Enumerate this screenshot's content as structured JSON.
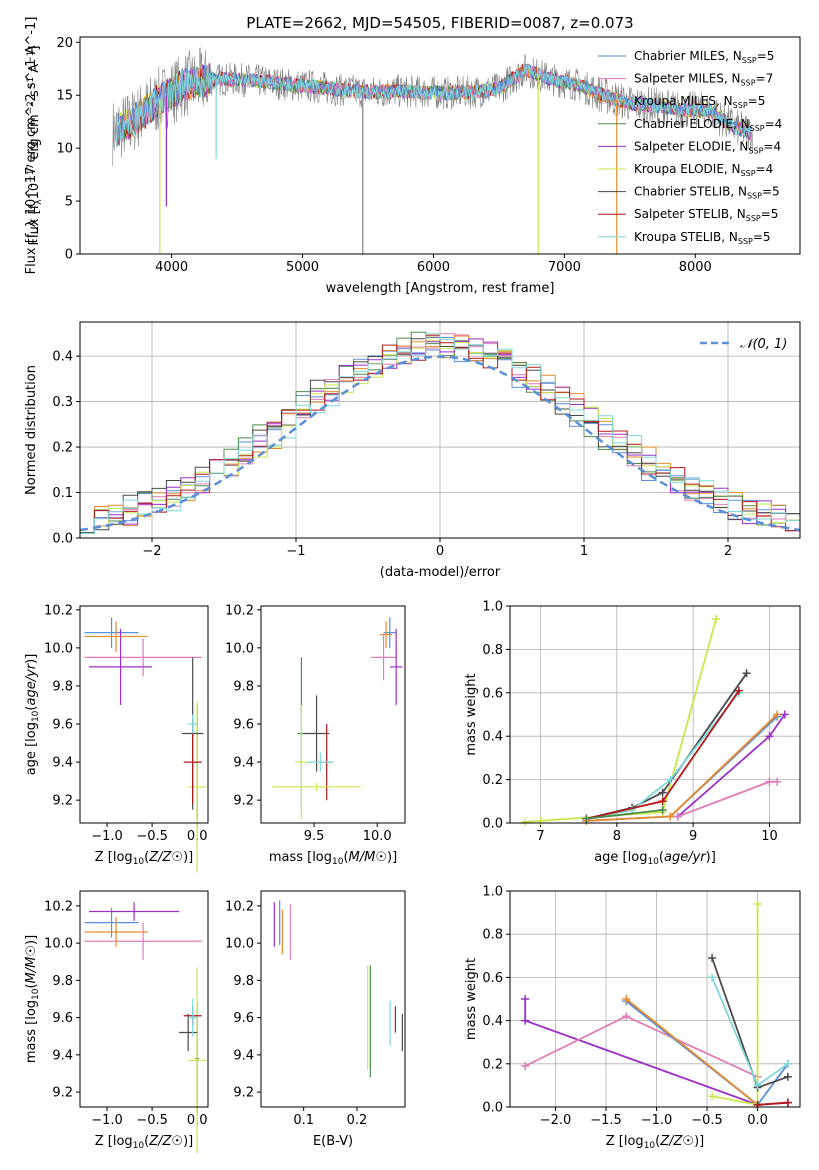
{
  "title": "PLATE=2662, MJD=54505, FIBERID=0087, z=0.073",
  "colors": {
    "Chabrier MILES": "#5b8fd8",
    "Salpeter MILES": "#e07cb8",
    "Kroupa MILES": "#e88a2e",
    "Chabrier ELODIE": "#4d8a4d",
    "Salpeter ELODIE": "#9b30c8",
    "Kroupa ELODIE": "#c8e84a",
    "Chabrier STELIB": "#4a4a4a",
    "Salpeter STELIB": "#b01818",
    "Kroupa STELIB": "#7fd8d8",
    "normal": "#5b8fd8"
  },
  "chart_data": [
    {
      "type": "line",
      "title": "PLATE=2662, MJD=54505, FIBERID=0087, z=0.073",
      "xlabel": "wavelength [Angstrom, rest frame]",
      "ylabel": "Flux [f_λ 10^-17 erg cm^-2 s^-1 A^-1]",
      "xlim": [
        3300,
        8800
      ],
      "ylim": [
        0,
        20.5
      ],
      "xticks": [
        4000,
        5000,
        6000,
        7000,
        8000
      ],
      "yticks": [
        0,
        5,
        10,
        15,
        20
      ],
      "grid": false,
      "legend_position": "top-right",
      "series": [
        {
          "name": "Chabrier MILES",
          "label_main": "Chabrier MILES, N",
          "label_sub": "SSP",
          "label_tail": "=5"
        },
        {
          "name": "Salpeter MILES",
          "label_main": "Salpeter MILES, N",
          "label_sub": "SSP",
          "label_tail": "=7"
        },
        {
          "name": "Kroupa MILES",
          "label_main": "Kroupa MILES, N",
          "label_sub": "SSP",
          "label_tail": "=5"
        },
        {
          "name": "Chabrier ELODIE",
          "label_main": "Chabrier ELODIE, N",
          "label_sub": "SSP",
          "label_tail": "=4"
        },
        {
          "name": "Salpeter ELODIE",
          "label_main": "Salpeter ELODIE, N",
          "label_sub": "SSP",
          "label_tail": "=4"
        },
        {
          "name": "Kroupa ELODIE",
          "label_main": "Kroupa ELODIE, N",
          "label_sub": "SSP",
          "label_tail": "=4"
        },
        {
          "name": "Chabrier STELIB",
          "label_main": "Chabrier STELIB, N",
          "label_sub": "SSP",
          "label_tail": "=5"
        },
        {
          "name": "Salpeter STELIB",
          "label_main": "Salpeter STELIB, N",
          "label_sub": "SSP",
          "label_tail": "=5"
        },
        {
          "name": "Kroupa STELIB",
          "label_main": "Kroupa STELIB, N",
          "label_sub": "SSP",
          "label_tail": "=5"
        }
      ],
      "continuum": {
        "x": [
          3550,
          3700,
          3900,
          4100,
          4300,
          4500,
          4700,
          4900,
          5100,
          5300,
          5500,
          5700,
          5900,
          6100,
          6300,
          6500,
          6700,
          6900,
          7100,
          7300,
          7500,
          7700,
          7900,
          8100,
          8300,
          8450
        ],
        "y": [
          11.5,
          12.5,
          14.5,
          16.0,
          16.5,
          16.5,
          16.3,
          16.0,
          15.8,
          15.5,
          15.3,
          15.4,
          15.3,
          15.2,
          15.3,
          15.6,
          17.4,
          16.5,
          16.0,
          15.0,
          14.2,
          14.0,
          13.6,
          13.6,
          12.0,
          11.3
        ]
      }
    },
    {
      "type": "histogram",
      "xlabel": "(data-model)/error",
      "ylabel": "Normed distribution",
      "xlim": [
        -2.5,
        2.5
      ],
      "ylim": [
        0,
        0.475
      ],
      "xticks": [
        -2,
        -1,
        0,
        1,
        2
      ],
      "yticks": [
        0.0,
        0.1,
        0.2,
        0.3,
        0.4
      ],
      "grid": true,
      "legend": [
        {
          "name": "N(0,1)",
          "style": "dashed"
        }
      ],
      "legend_position": "top-right",
      "bin_width": 0.1,
      "bin_start": -2.5,
      "reference_series": [
        0.025,
        0.028,
        0.034,
        0.04,
        0.046,
        0.054,
        0.062,
        0.07,
        0.08,
        0.09,
        0.1,
        0.11,
        0.125,
        0.14,
        0.155,
        0.17,
        0.185,
        0.2,
        0.22,
        0.24,
        0.26,
        0.28,
        0.3,
        0.32,
        0.34,
        0.355,
        0.365,
        0.375,
        0.385,
        0.395,
        0.4,
        0.395,
        0.39,
        0.385,
        0.375,
        0.365,
        0.35,
        0.335,
        0.32,
        0.3,
        0.285,
        0.265,
        0.245,
        0.225,
        0.205,
        0.185,
        0.165,
        0.15,
        0.13,
        0.115,
        0.1,
        0.09,
        0.08,
        0.07,
        0.06,
        0.053,
        0.047,
        0.042,
        0.038,
        0.034
      ]
    },
    {
      "type": "errorbar",
      "xlabel": "Z [log10(Z/Z☉)]",
      "ylabel": "age [log10(age/yr)]",
      "xlim": [
        -1.3,
        0.12
      ],
      "ylim": [
        9.08,
        10.22
      ],
      "xticks": [
        -1.0,
        -0.5,
        0.0
      ],
      "yticks": [
        9.2,
        9.4,
        9.6,
        9.8,
        10.0,
        10.2
      ],
      "points": [
        {
          "name": "Chabrier MILES",
          "x": -0.95,
          "xerr": 0.3,
          "y": 10.08,
          "yerr": 0.08
        },
        {
          "name": "Salpeter MILES",
          "x": -0.6,
          "xerr": 0.65,
          "y": 9.95,
          "yerr": 0.1
        },
        {
          "name": "Kroupa MILES",
          "x": -0.9,
          "xerr": 0.35,
          "y": 10.06,
          "yerr": 0.08
        },
        {
          "name": "Chabrier ELODIE",
          "x": 0.0,
          "xerr": 0.02,
          "y": 9.4,
          "yerr": 0.3
        },
        {
          "name": "Salpeter ELODIE",
          "x": -0.85,
          "xerr": 0.35,
          "y": 9.9,
          "yerr": 0.2
        },
        {
          "name": "Kroupa ELODIE",
          "x": 0.0,
          "xerr": 0.1,
          "y": 9.27,
          "yerr": 0.45
        },
        {
          "name": "Chabrier STELIB",
          "x": -0.05,
          "xerr": 0.12,
          "y": 9.55,
          "yerr": 0.4
        },
        {
          "name": "Salpeter STELIB",
          "x": -0.05,
          "xerr": 0.1,
          "y": 9.4,
          "yerr": 0.22
        },
        {
          "name": "Kroupa STELIB",
          "x": -0.05,
          "xerr": 0.05,
          "y": 9.6,
          "yerr": 0.05
        }
      ]
    },
    {
      "type": "errorbar",
      "xlabel": "mass [log10(M/M☉)]",
      "ylabel": "",
      "xlim": [
        9.08,
        10.22
      ],
      "ylim": [
        9.08,
        10.22
      ],
      "xticks": [
        9.5,
        10.0
      ],
      "yticks": [
        9.2,
        9.4,
        9.6,
        9.8,
        10.0,
        10.2
      ],
      "points": [
        {
          "name": "Chabrier MILES",
          "x": 10.1,
          "xerr": 0.05,
          "y": 10.08,
          "yerr": 0.08
        },
        {
          "name": "Salpeter MILES",
          "x": 10.05,
          "xerr": 0.1,
          "y": 9.95,
          "yerr": 0.12
        },
        {
          "name": "Kroupa MILES",
          "x": 10.07,
          "xerr": 0.05,
          "y": 10.07,
          "yerr": 0.07
        },
        {
          "name": "Chabrier ELODIE",
          "x": 9.4,
          "xerr": 0.03,
          "y": 9.55,
          "yerr": 0.4
        },
        {
          "name": "Salpeter ELODIE",
          "x": 10.15,
          "xerr": 0.05,
          "y": 9.9,
          "yerr": 0.2
        },
        {
          "name": "Kroupa ELODIE",
          "x": 9.4,
          "xerr": 0.05,
          "y": 9.4,
          "yerr": 0.3
        },
        {
          "name": "Chabrier STELIB",
          "x": 9.52,
          "xerr": 0.1,
          "y": 9.55,
          "yerr": 0.2
        },
        {
          "name": "Salpeter STELIB",
          "x": 9.6,
          "xerr": 0.05,
          "y": 9.4,
          "yerr": 0.2
        },
        {
          "name": "Kroupa STELIB",
          "x": 9.55,
          "xerr": 0.1,
          "y": 9.4,
          "yerr": 0.05
        },
        {
          "name": "Kroupa ELODIE",
          "x": 9.52,
          "xerr": 0.35,
          "y": 9.27,
          "yerr": 0.02
        }
      ]
    },
    {
      "type": "line",
      "xlabel": "age [log10(age/yr)]",
      "ylabel": "mass weight",
      "xlim": [
        6.6,
        10.4
      ],
      "ylim": [
        0,
        1.0
      ],
      "xticks": [
        7,
        8,
        9,
        10
      ],
      "yticks": [
        0.0,
        0.2,
        0.4,
        0.6,
        0.8,
        1.0
      ],
      "grid": true,
      "series": [
        {
          "name": "Kroupa ELODIE",
          "x": [
            6.8,
            7.0,
            8.6,
            9.3
          ],
          "y": [
            0.005,
            0.01,
            0.05,
            0.94
          ]
        },
        {
          "name": "Chabrier STELIB",
          "x": [
            7.6,
            8.2,
            8.6,
            9.7
          ],
          "y": [
            0.02,
            0.07,
            0.14,
            0.69
          ]
        },
        {
          "name": "Kroupa STELIB",
          "x": [
            7.6,
            8.2,
            8.7,
            9.6
          ],
          "y": [
            0.02,
            0.06,
            0.2,
            0.6
          ]
        },
        {
          "name": "Chabrier MILES",
          "x": [
            7.6,
            8.7,
            10.1
          ],
          "y": [
            0.01,
            0.03,
            0.49
          ]
        },
        {
          "name": "Kroupa MILES",
          "x": [
            7.6,
            8.7,
            10.1
          ],
          "y": [
            0.01,
            0.03,
            0.5
          ]
        },
        {
          "name": "Salpeter ELODIE",
          "x": [
            8.8,
            10.0,
            10.2
          ],
          "y": [
            0.03,
            0.4,
            0.5
          ]
        },
        {
          "name": "Salpeter MILES",
          "x": [
            8.8,
            10.0,
            10.1
          ],
          "y": [
            0.03,
            0.19,
            0.19
          ]
        },
        {
          "name": "Salpeter STELIB",
          "x": [
            7.6,
            8.6,
            9.6
          ],
          "y": [
            0.02,
            0.1,
            0.61
          ]
        },
        {
          "name": "Chabrier ELODIE",
          "x": [
            7.6,
            8.6
          ],
          "y": [
            0.02,
            0.06
          ]
        }
      ]
    },
    {
      "type": "errorbar",
      "xlabel": "Z [log10(Z/Z☉)]",
      "ylabel": "mass [log10(M/M☉)]",
      "xlim": [
        -1.3,
        0.12
      ],
      "ylim": [
        9.12,
        10.28
      ],
      "xticks": [
        -1.0,
        -0.5,
        0.0
      ],
      "yticks": [
        9.2,
        9.4,
        9.6,
        9.8,
        10.0,
        10.2
      ],
      "points": [
        {
          "name": "Chabrier MILES",
          "x": -0.95,
          "xerr": 0.3,
          "y": 10.11,
          "yerr": 0.08
        },
        {
          "name": "Salpeter MILES",
          "x": -0.6,
          "xerr": 0.65,
          "y": 10.01,
          "yerr": 0.1
        },
        {
          "name": "Kroupa MILES",
          "x": -0.9,
          "xerr": 0.35,
          "y": 10.06,
          "yerr": 0.08
        },
        {
          "name": "Chabrier ELODIE",
          "x": 0.0,
          "xerr": 0.02,
          "y": 9.38,
          "yerr": 0.3
        },
        {
          "name": "Salpeter ELODIE",
          "x": -0.7,
          "xerr": 0.5,
          "y": 10.17,
          "yerr": 0.05
        },
        {
          "name": "Kroupa ELODIE",
          "x": 0.0,
          "xerr": 0.1,
          "y": 9.37,
          "yerr": 0.5
        },
        {
          "name": "Chabrier STELIB",
          "x": -0.1,
          "xerr": 0.1,
          "y": 9.52,
          "yerr": 0.1
        },
        {
          "name": "Salpeter STELIB",
          "x": -0.05,
          "xerr": 0.1,
          "y": 9.61,
          "yerr": 0.05
        },
        {
          "name": "Kroupa STELIB",
          "x": -0.05,
          "xerr": 0.05,
          "y": 9.6,
          "yerr": 0.1
        }
      ]
    },
    {
      "type": "errorbar",
      "xlabel": "E(B-V)",
      "ylabel": "",
      "xlim": [
        0.02,
        0.29
      ],
      "ylim": [
        9.12,
        10.28
      ],
      "xticks": [
        0.1,
        0.2
      ],
      "yticks": [
        9.2,
        9.4,
        9.6,
        9.8,
        10.0,
        10.2
      ],
      "points": [
        {
          "name": "Chabrier MILES",
          "x": 0.055,
          "xerr": 0.0,
          "y": 10.11,
          "yerr": 0.12
        },
        {
          "name": "Salpeter MILES",
          "x": 0.075,
          "xerr": 0.0,
          "y": 10.06,
          "yerr": 0.15
        },
        {
          "name": "Kroupa MILES",
          "x": 0.06,
          "xerr": 0.0,
          "y": 10.06,
          "yerr": 0.12
        },
        {
          "name": "Chabrier ELODIE",
          "x": 0.225,
          "xerr": 0.0,
          "y": 9.58,
          "yerr": 0.3
        },
        {
          "name": "Salpeter ELODIE",
          "x": 0.045,
          "xerr": 0.0,
          "y": 10.1,
          "yerr": 0.12
        },
        {
          "name": "Kroupa ELODIE",
          "x": 0.22,
          "xerr": 0.0,
          "y": 9.6,
          "yerr": 0.28
        },
        {
          "name": "Chabrier STELIB",
          "x": 0.285,
          "xerr": 0.0,
          "y": 9.52,
          "yerr": 0.1
        },
        {
          "name": "Salpeter STELIB",
          "x": 0.272,
          "xerr": 0.0,
          "y": 9.59,
          "yerr": 0.07
        },
        {
          "name": "Kroupa STELIB",
          "x": 0.262,
          "xerr": 0.0,
          "y": 9.57,
          "yerr": 0.12
        }
      ]
    },
    {
      "type": "line",
      "xlabel": "Z [log10(Z/Z☉)]",
      "ylabel": "mass weight",
      "xlim": [
        -2.45,
        0.42
      ],
      "ylim": [
        0,
        1.0
      ],
      "xticks": [
        -2.0,
        -1.5,
        -1.0,
        -0.5,
        0.0
      ],
      "yticks": [
        0.0,
        0.2,
        0.4,
        0.6,
        0.8,
        1.0
      ],
      "grid": true,
      "series": [
        {
          "name": "Salpeter ELODIE",
          "x": [
            -2.3,
            -2.3,
            0.0,
            0.3
          ],
          "y": [
            0.5,
            0.4,
            0.01,
            0.02
          ]
        },
        {
          "name": "Salpeter MILES",
          "x": [
            -2.3,
            -1.3,
            0.0
          ],
          "y": [
            0.19,
            0.42,
            0.14
          ]
        },
        {
          "name": "Chabrier MILES",
          "x": [
            -1.3,
            0.0,
            0.3
          ],
          "y": [
            0.49,
            0.01,
            0.2
          ]
        },
        {
          "name": "Kroupa MILES",
          "x": [
            -1.3,
            0.0
          ],
          "y": [
            0.5,
            0.01
          ]
        },
        {
          "name": "Kroupa ELODIE",
          "x": [
            0.0,
            0.0,
            -0.45
          ],
          "y": [
            0.94,
            0.01,
            0.05
          ]
        },
        {
          "name": "Chabrier STELIB",
          "x": [
            -0.45,
            0.0,
            0.3
          ],
          "y": [
            0.69,
            0.09,
            0.14
          ]
        },
        {
          "name": "Kroupa STELIB",
          "x": [
            -0.45,
            0.0,
            0.3
          ],
          "y": [
            0.6,
            0.1,
            0.2
          ]
        },
        {
          "name": "Salpeter STELIB",
          "x": [
            0.0,
            0.3
          ],
          "y": [
            0.01,
            0.02
          ]
        }
      ]
    }
  ]
}
